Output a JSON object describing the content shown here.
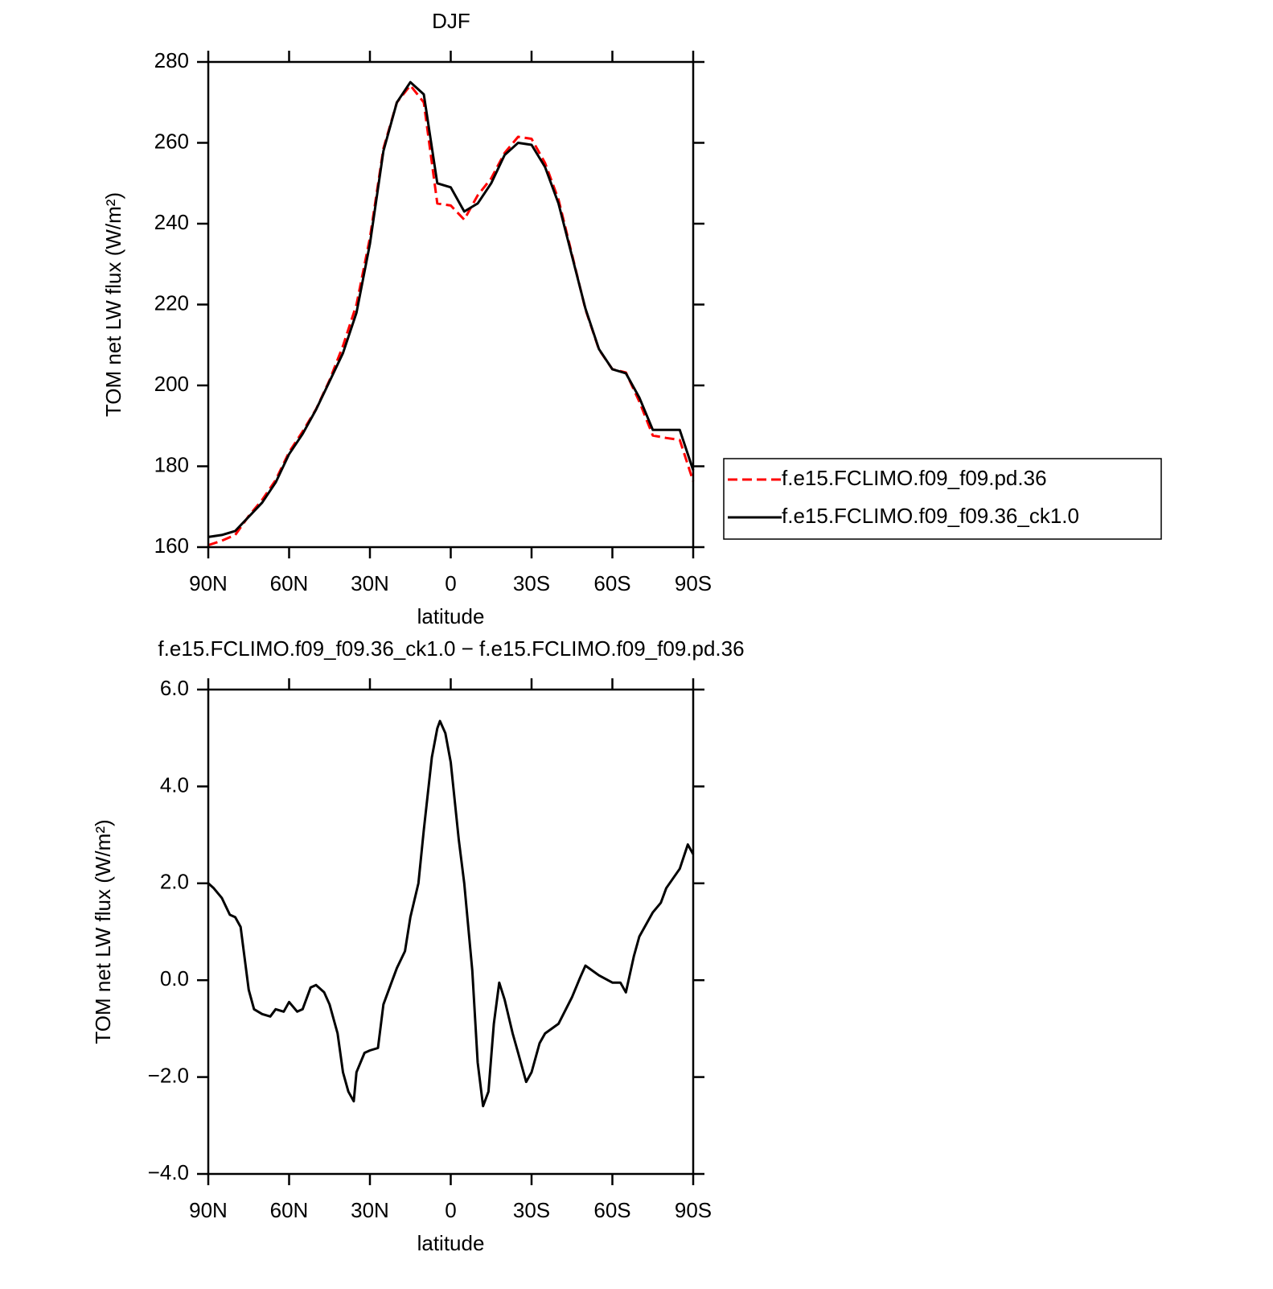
{
  "chart_data": [
    {
      "type": "line",
      "title": "DJF",
      "x_label": "latitude",
      "y_label": "TOM net LW flux (W/m²)",
      "x": [
        90,
        85,
        80,
        75,
        70,
        65,
        60,
        55,
        50,
        45,
        40,
        35,
        30,
        25,
        20,
        15,
        10,
        5,
        0,
        -5,
        -10,
        -15,
        -20,
        -25,
        -30,
        -35,
        -40,
        -45,
        -50,
        -55,
        -60,
        -65,
        -70,
        -75,
        -80,
        -85,
        -90
      ],
      "series": [
        {
          "name": "f.e15.FCLIMO.f09_f09.pd.36",
          "color": "#ff0000",
          "dash": true,
          "values": [
            160.5,
            161.6,
            163,
            167.7,
            171.7,
            176.6,
            183.5,
            188.6,
            194.1,
            201.3,
            209.8,
            220,
            236.5,
            258.6,
            270,
            274.2,
            270,
            245,
            244.5,
            241,
            247,
            251.2,
            257.5,
            261.5,
            261,
            255,
            246,
            232.4,
            218.8,
            208.9,
            204,
            203.2,
            196,
            187.6,
            187,
            186.5,
            176.3
          ]
        },
        {
          "name": "f.e15.FCLIMO.f09_f09.36_ck1.0",
          "color": "#000000",
          "dash": false,
          "values": [
            162.5,
            163,
            164,
            167.5,
            171,
            176,
            183,
            188,
            194,
            201,
            208,
            218,
            235,
            258,
            270,
            275,
            272,
            250,
            249,
            243,
            245,
            250,
            257,
            260,
            259.5,
            254,
            245,
            232,
            219,
            209,
            204,
            203,
            197,
            189,
            189,
            189,
            179
          ]
        }
      ],
      "xlim": [
        90,
        -90
      ],
      "xticks": [
        {
          "value": 90,
          "label": "90N"
        },
        {
          "value": 60,
          "label": "60N"
        },
        {
          "value": 30,
          "label": "30N"
        },
        0,
        {
          "value": -30,
          "label": "30S"
        },
        {
          "value": -60,
          "label": "60S"
        },
        {
          "value": -90,
          "label": "90S"
        }
      ],
      "ylim": [
        160,
        280
      ],
      "yticks": [
        160,
        180,
        200,
        220,
        240,
        260,
        280
      ],
      "legend": "right"
    },
    {
      "type": "line",
      "title": "f.e15.FCLIMO.f09_f09.36_ck1.0 − f.e15.FCLIMO.f09_f09.pd.36",
      "x_label": "latitude",
      "y_label": "TOM net LW flux (W/m²)",
      "x": [
        90,
        88,
        85,
        82,
        80,
        78,
        75,
        73,
        70,
        67,
        65,
        62,
        60,
        57,
        55,
        52,
        50,
        47,
        45,
        42,
        40,
        38,
        36,
        35,
        32,
        30,
        27,
        25,
        22,
        20,
        17,
        15,
        12,
        10,
        7,
        5,
        4,
        2,
        0,
        -3,
        -5,
        -8,
        -10,
        -12,
        -14,
        -16,
        -18,
        -20,
        -23,
        -25,
        -28,
        -30,
        -33,
        -35,
        -40,
        -45,
        -48,
        -50,
        -55,
        -60,
        -63,
        -65,
        -68,
        -70,
        -75,
        -78,
        -80,
        -85,
        -88,
        -90
      ],
      "series": [
        {
          "color": "#000000",
          "dash": false,
          "values": [
            2.0,
            1.9,
            1.7,
            1.35,
            1.3,
            1.1,
            -0.2,
            -0.6,
            -0.7,
            -0.75,
            -0.6,
            -0.65,
            -0.45,
            -0.65,
            -0.6,
            -0.15,
            -0.1,
            -0.25,
            -0.5,
            -1.1,
            -1.9,
            -2.3,
            -2.5,
            -1.9,
            -1.5,
            -1.45,
            -1.4,
            -0.5,
            -0.05,
            0.25,
            0.6,
            1.3,
            2.0,
            3.1,
            4.6,
            5.2,
            5.35,
            5.1,
            4.5,
            2.9,
            2.0,
            0.2,
            -1.7,
            -2.6,
            -2.3,
            -0.9,
            -0.05,
            -0.4,
            -1.1,
            -1.5,
            -2.1,
            -1.9,
            -1.3,
            -1.1,
            -0.9,
            -0.35,
            0.05,
            0.3,
            0.1,
            -0.05,
            -0.05,
            -0.25,
            0.5,
            0.9,
            1.4,
            1.6,
            1.9,
            2.3,
            2.8,
            2.6
          ]
        }
      ],
      "xlim": [
        90,
        -90
      ],
      "xticks": [
        {
          "value": 90,
          "label": "90N"
        },
        {
          "value": 60,
          "label": "60N"
        },
        {
          "value": 30,
          "label": "30N"
        },
        0,
        {
          "value": -30,
          "label": "30S"
        },
        {
          "value": -60,
          "label": "60S"
        },
        {
          "value": -90,
          "label": "90S"
        }
      ],
      "ylim": [
        -4,
        6
      ],
      "yticks": [
        {
          "value": -4,
          "label": "−4.0"
        },
        {
          "value": -2,
          "label": "−2.0"
        },
        {
          "value": 0,
          "label": "0.0"
        },
        {
          "value": 2,
          "label": "2.0"
        },
        {
          "value": 4,
          "label": "4.0"
        },
        {
          "value": 6,
          "label": "6.0"
        }
      ]
    }
  ]
}
